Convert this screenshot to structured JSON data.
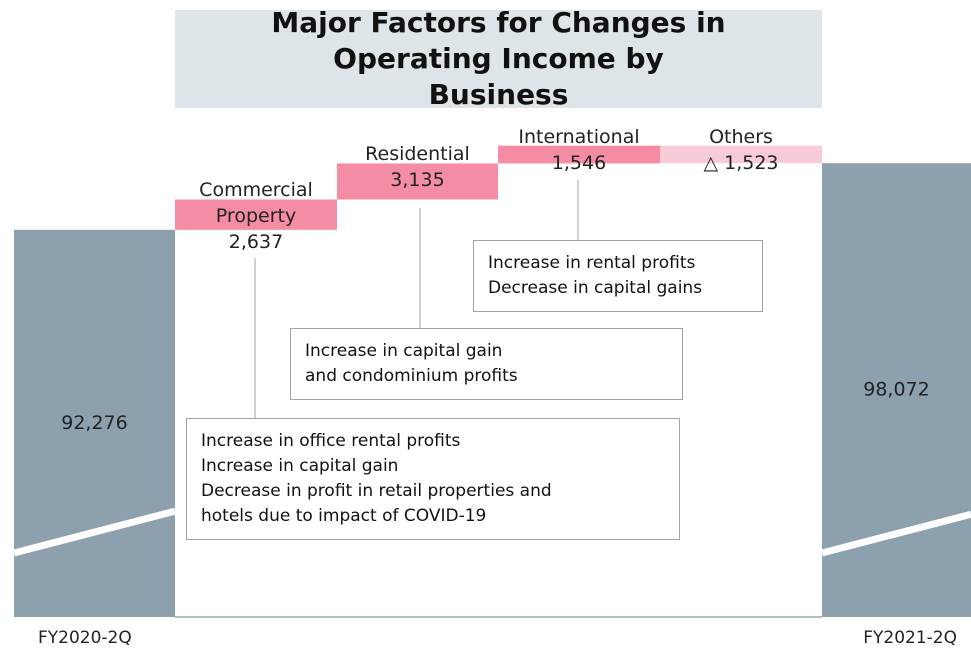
{
  "chart_data": {
    "type": "waterfall",
    "title": "Major Factors for Changes in Operating Income by Business",
    "categories": [
      "FY2020-2Q",
      "Commercial Property",
      "Residential",
      "International",
      "Others",
      "FY2021-2Q"
    ],
    "measure": [
      "total",
      "relative",
      "relative",
      "relative",
      "relative",
      "total"
    ],
    "values": [
      92276,
      2637,
      3135,
      1546,
      -1523,
      98072
    ],
    "value_labels": [
      "92,276",
      "2,637",
      "3,135",
      "1,546",
      "△ 1,523",
      "98,072"
    ],
    "total_color": "#8ca1ad",
    "increase_color": "#f48ca4",
    "decrease_color": "#f8ccd7",
    "ylim": [
      58600,
      100000
    ],
    "axis_break": true,
    "annotations": [
      [
        "Increase in office rental profits",
        "Increase in capital gain",
        "Decrease in profit in retail properties and",
        "hotels due to impact of COVID-19"
      ],
      [
        "Increase in capital gain",
        "and condominium profits"
      ],
      [
        "Increase in rental profits",
        "Decrease in capital gains"
      ]
    ]
  }
}
